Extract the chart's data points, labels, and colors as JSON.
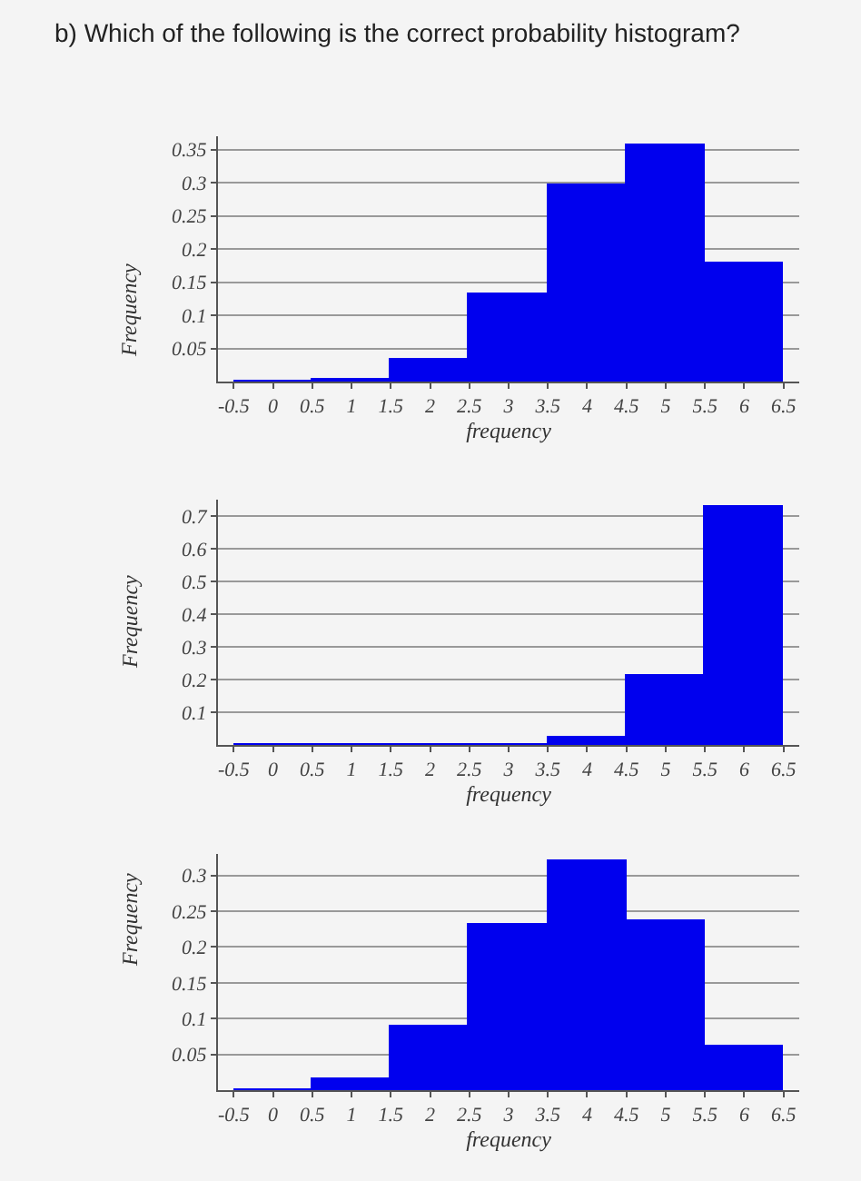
{
  "chart_data": [
    {
      "type": "histogram",
      "title": "b) Which of the following is the correct probability histogram?",
      "xlabel": "frequency",
      "ylabel": "Frequency",
      "color": "#0000ee",
      "grid": "y",
      "bins": [
        -0.5,
        0.5,
        1.5,
        2.5,
        3.5,
        4.5,
        5.5,
        6.5
      ],
      "values": [
        0,
        0.004,
        0.033,
        0.132,
        0.297,
        0.356,
        0.178
      ],
      "xlim": [
        -0.7,
        6.7
      ],
      "xticks": [
        -0.5,
        0,
        0.5,
        1,
        1.5,
        2,
        2.5,
        3,
        3.5,
        4,
        4.5,
        5,
        5.5,
        6,
        6.5
      ],
      "ylim": [
        0,
        0.37
      ],
      "yticks": [
        0.05,
        0.1,
        0.15,
        0.2,
        0.25,
        0.3,
        0.35
      ]
    },
    {
      "type": "histogram",
      "xlabel": "frequency",
      "ylabel": "Frequency",
      "color": "#0000ee",
      "grid": "y",
      "bins": [
        -0.5,
        0.5,
        1.5,
        2.5,
        3.5,
        4.5,
        5.5,
        6.5
      ],
      "values": [
        0,
        0,
        0,
        0,
        0.02,
        0.21,
        0.73
      ],
      "xlim": [
        -0.7,
        6.7
      ],
      "xticks": [
        -0.5,
        0,
        0.5,
        1,
        1.5,
        2,
        2.5,
        3,
        3.5,
        4,
        4.5,
        5,
        5.5,
        6,
        6.5
      ],
      "ylim": [
        0,
        0.75
      ],
      "yticks": [
        0.1,
        0.2,
        0.3,
        0.4,
        0.5,
        0.6,
        0.7
      ]
    },
    {
      "type": "histogram",
      "xlabel": "frequency",
      "ylabel": "Frequency",
      "color": "#0000ee",
      "grid": "y",
      "bins": [
        -0.5,
        0.5,
        1.5,
        2.5,
        3.5,
        4.5,
        5.5,
        6.5
      ],
      "values": [
        0,
        0.015,
        0.09,
        0.23,
        0.32,
        0.235,
        0.06
      ],
      "xlim": [
        -0.7,
        6.7
      ],
      "xticks": [
        -0.5,
        0,
        0.5,
        1,
        1.5,
        2,
        2.5,
        3,
        3.5,
        4,
        4.5,
        5,
        5.5,
        6,
        6.5
      ],
      "ylim": [
        0,
        0.33
      ],
      "yticks": [
        0.05,
        0.1,
        0.15,
        0.2,
        0.25,
        0.3
      ]
    }
  ]
}
